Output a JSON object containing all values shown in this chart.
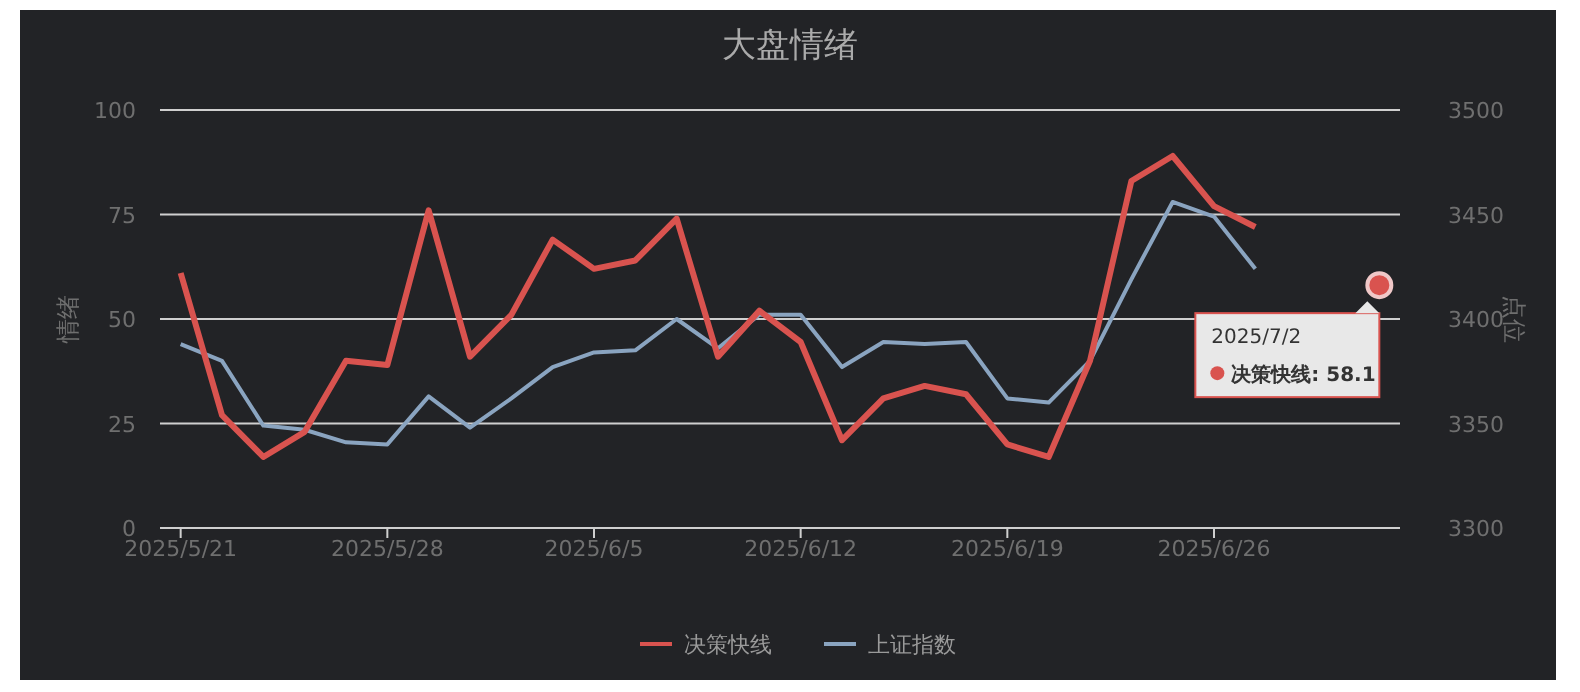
{
  "chart_data": {
    "type": "line",
    "title": "大盘情绪",
    "ylabel": "情绪",
    "y2label": "点位",
    "categories": [
      "2025/5/21",
      null,
      null,
      null,
      null,
      "2025/5/28",
      null,
      null,
      null,
      null,
      "2025/6/5",
      null,
      null,
      null,
      null,
      "2025/6/12",
      null,
      null,
      null,
      null,
      "2025/6/19",
      null,
      null,
      null,
      null,
      "2025/6/26",
      null,
      null,
      null,
      null
    ],
    "series": [
      {
        "name": "决策快线",
        "color": "#d9534f",
        "values": [
          61,
          27,
          17,
          23,
          40,
          39,
          76,
          41,
          51,
          69,
          62,
          64,
          74,
          41,
          52,
          44.5,
          21,
          31,
          34,
          32,
          20,
          17,
          40,
          83,
          89,
          77,
          72,
          null,
          null,
          58.1
        ]
      },
      {
        "name": "上证指数",
        "color": "#8aa4c0",
        "axis": "y2",
        "values": [
          3388,
          3380,
          3349,
          3347,
          3341,
          3340,
          3363,
          3348,
          3362,
          3377,
          3384,
          3385,
          3400,
          3386,
          3402,
          3402,
          3377,
          3389,
          3388,
          3389,
          3362,
          3360,
          3380,
          3419,
          3456,
          3449,
          3424,
          null,
          null,
          null
        ]
      }
    ],
    "ylim": [
      0,
      100
    ],
    "yticks": [
      0,
      25,
      50,
      75,
      100
    ],
    "y2lim": [
      3300,
      3500
    ],
    "y2ticks": [
      3300,
      3350,
      3400,
      3450,
      3500
    ],
    "grid": "y",
    "legend": "bottom",
    "marker": "none",
    "line_style": "solid",
    "annotations": [
      "2025/7/2",
      "决策快线: 58.1"
    ]
  }
}
